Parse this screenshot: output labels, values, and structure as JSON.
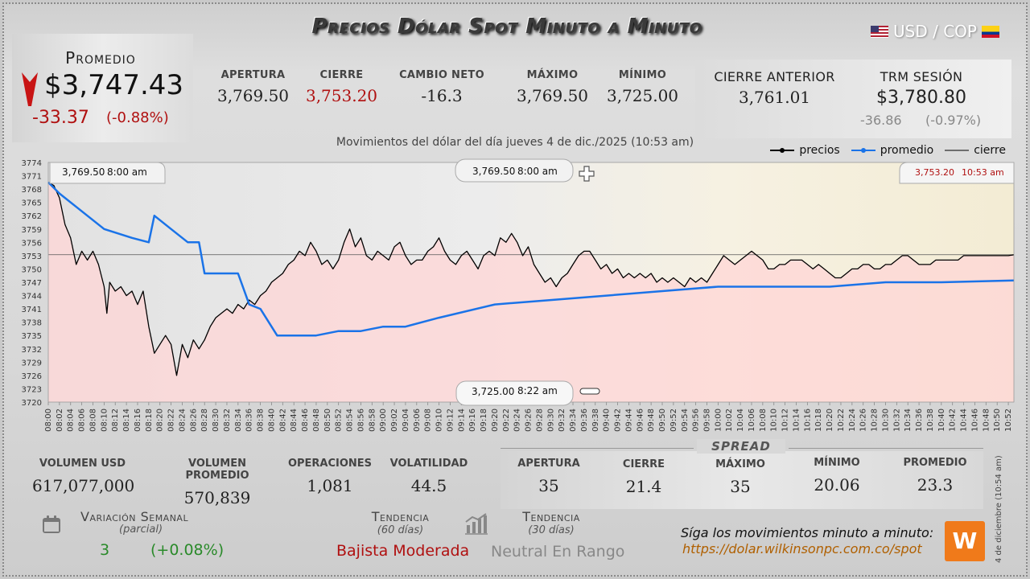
{
  "header": {
    "title": "Precios Dólar Spot Minuto a Minuto",
    "pair": "USD / COP",
    "us_flag_icon": "us-flag-icon",
    "co_flag_icon": "colombia-flag-icon"
  },
  "promedio": {
    "label": "Promedio",
    "value": "$3,747.43",
    "change": "-33.37",
    "change_pct": "(-0.88%)",
    "arrow_icon": "down-arrow-icon",
    "arrow_color": "#c81414"
  },
  "stats": [
    {
      "label": "APERTURA",
      "value": "3,769.50"
    },
    {
      "label": "CIERRE",
      "value": "3,753.20"
    },
    {
      "label": "CAMBIO NETO",
      "value": "-16.3"
    },
    {
      "label": "MÁXIMO",
      "value": "3,769.50"
    },
    {
      "label": "MÍNIMO",
      "value": "3,725.00"
    }
  ],
  "cierre_anterior": {
    "label": "CIERRE ANTERIOR",
    "value": "3,761.01"
  },
  "trm": {
    "label": "TRM SESIÓN",
    "value": "$3,780.80",
    "change": "-36.86",
    "change_pct": "(-0.97%)"
  },
  "subtitle": "Movimientos del dólar del día jueves 4 de dic./2025 (10:53 am)",
  "legend": {
    "precios": "precios",
    "promedio": "promedio",
    "cierre": "cierre"
  },
  "callouts": {
    "open_left": {
      "price": "3,769.50",
      "time": "8:00 am"
    },
    "open_top": {
      "price": "3,769.50",
      "time": "8:00 am"
    },
    "close": {
      "price": "3,753.20",
      "time": "10:53 am"
    },
    "min": {
      "price": "3,725.00",
      "time": "8:22 am"
    }
  },
  "chart_data": {
    "type": "line",
    "ylim": [
      3720,
      3774
    ],
    "yticks": [
      3720,
      3723,
      3726,
      3729,
      3732,
      3735,
      3738,
      3741,
      3744,
      3747,
      3750,
      3753,
      3756,
      3759,
      3762,
      3765,
      3768,
      3771,
      3774
    ],
    "xlim_minutes": [
      0,
      173
    ],
    "xticks": [
      "08:00",
      "08:02",
      "08:04",
      "08:06",
      "08:08",
      "08:10",
      "08:12",
      "08:14",
      "08:16",
      "08:18",
      "08:20",
      "08:22",
      "08:24",
      "08:26",
      "08:28",
      "08:30",
      "08:32",
      "08:34",
      "08:36",
      "08:38",
      "08:40",
      "08:42",
      "08:44",
      "08:46",
      "08:48",
      "08:50",
      "08:52",
      "08:54",
      "08:56",
      "08:58",
      "09:00",
      "09:02",
      "09:04",
      "09:06",
      "09:08",
      "09:10",
      "09:12",
      "09:14",
      "09:16",
      "09:18",
      "09:20",
      "09:22",
      "09:24",
      "09:26",
      "09:28",
      "09:30",
      "09:32",
      "09:34",
      "09:36",
      "09:38",
      "09:40",
      "09:42",
      "09:44",
      "09:46",
      "09:48",
      "09:50",
      "09:52",
      "09:54",
      "09:56",
      "09:58",
      "10:00",
      "10:02",
      "10:04",
      "10:06",
      "10:08",
      "10:10",
      "10:12",
      "10:14",
      "10:16",
      "10:18",
      "10:20",
      "10:22",
      "10:24",
      "10:26",
      "10:28",
      "10:30",
      "10:32",
      "10:34",
      "10:36",
      "10:38",
      "10:40",
      "10:42",
      "10:44",
      "10:46",
      "10:48",
      "10:50",
      "10:52"
    ],
    "cierre_ref": 3753.2,
    "series": [
      {
        "name": "precios",
        "color": "#000000",
        "points": [
          [
            0,
            3769.5
          ],
          [
            1,
            3768.8
          ],
          [
            2,
            3766
          ],
          [
            3,
            3760
          ],
          [
            4,
            3757
          ],
          [
            5,
            3751
          ],
          [
            6,
            3754
          ],
          [
            7,
            3752
          ],
          [
            8,
            3754
          ],
          [
            9,
            3751
          ],
          [
            10,
            3746
          ],
          [
            10.5,
            3740
          ],
          [
            11,
            3747
          ],
          [
            12,
            3745
          ],
          [
            13,
            3746
          ],
          [
            14,
            3744
          ],
          [
            15,
            3745
          ],
          [
            16,
            3742
          ],
          [
            17,
            3745
          ],
          [
            18,
            3737
          ],
          [
            19,
            3731
          ],
          [
            20,
            3733
          ],
          [
            21,
            3735
          ],
          [
            22,
            3733
          ],
          [
            23,
            3726
          ],
          [
            24,
            3733
          ],
          [
            25,
            3730
          ],
          [
            26,
            3734
          ],
          [
            27,
            3732
          ],
          [
            28,
            3734
          ],
          [
            29,
            3737
          ],
          [
            30,
            3739
          ],
          [
            31,
            3740
          ],
          [
            32,
            3741
          ],
          [
            33,
            3740
          ],
          [
            34,
            3742
          ],
          [
            35,
            3741
          ],
          [
            36,
            3743
          ],
          [
            37,
            3742
          ],
          [
            38,
            3744
          ],
          [
            39,
            3745
          ],
          [
            40,
            3747
          ],
          [
            41,
            3748
          ],
          [
            42,
            3749
          ],
          [
            43,
            3751
          ],
          [
            44,
            3752
          ],
          [
            45,
            3754
          ],
          [
            46,
            3753
          ],
          [
            47,
            3756
          ],
          [
            48,
            3754
          ],
          [
            49,
            3751
          ],
          [
            50,
            3752
          ],
          [
            51,
            3750
          ],
          [
            52,
            3752
          ],
          [
            53,
            3756
          ],
          [
            54,
            3759
          ],
          [
            55,
            3755
          ],
          [
            56,
            3757
          ],
          [
            57,
            3753
          ],
          [
            58,
            3752
          ],
          [
            59,
            3754
          ],
          [
            60,
            3753
          ],
          [
            61,
            3752
          ],
          [
            62,
            3755
          ],
          [
            63,
            3756
          ],
          [
            64,
            3753
          ],
          [
            65,
            3751
          ],
          [
            66,
            3752
          ],
          [
            67,
            3752
          ],
          [
            68,
            3754
          ],
          [
            69,
            3755
          ],
          [
            70,
            3757
          ],
          [
            71,
            3754
          ],
          [
            72,
            3752
          ],
          [
            73,
            3751
          ],
          [
            74,
            3753
          ],
          [
            75,
            3754
          ],
          [
            76,
            3752
          ],
          [
            77,
            3750
          ],
          [
            78,
            3753
          ],
          [
            79,
            3754
          ],
          [
            80,
            3753
          ],
          [
            81,
            3757
          ],
          [
            82,
            3756
          ],
          [
            83,
            3758
          ],
          [
            84,
            3756
          ],
          [
            85,
            3753
          ],
          [
            86,
            3755
          ],
          [
            87,
            3751
          ],
          [
            88,
            3749
          ],
          [
            89,
            3747
          ],
          [
            90,
            3748
          ],
          [
            91,
            3746
          ],
          [
            92,
            3748
          ],
          [
            93,
            3749
          ],
          [
            94,
            3751
          ],
          [
            95,
            3753
          ],
          [
            96,
            3754
          ],
          [
            97,
            3754
          ],
          [
            98,
            3752
          ],
          [
            99,
            3750
          ],
          [
            100,
            3751
          ],
          [
            101,
            3749
          ],
          [
            102,
            3750
          ],
          [
            103,
            3748
          ],
          [
            104,
            3749
          ],
          [
            105,
            3748
          ],
          [
            106,
            3749
          ],
          [
            107,
            3748
          ],
          [
            108,
            3749
          ],
          [
            109,
            3747
          ],
          [
            110,
            3748
          ],
          [
            111,
            3747
          ],
          [
            112,
            3748
          ],
          [
            113,
            3747
          ],
          [
            114,
            3746
          ],
          [
            115,
            3748
          ],
          [
            116,
            3747
          ],
          [
            117,
            3748
          ],
          [
            118,
            3747
          ],
          [
            119,
            3749
          ],
          [
            120,
            3751
          ],
          [
            121,
            3753
          ],
          [
            122,
            3752
          ],
          [
            123,
            3751
          ],
          [
            124,
            3752
          ],
          [
            125,
            3753
          ],
          [
            126,
            3754
          ],
          [
            127,
            3753
          ],
          [
            128,
            3752
          ],
          [
            129,
            3750
          ],
          [
            130,
            3750
          ],
          [
            131,
            3751
          ],
          [
            132,
            3751
          ],
          [
            133,
            3752
          ],
          [
            134,
            3752
          ],
          [
            135,
            3752
          ],
          [
            136,
            3751
          ],
          [
            137,
            3750
          ],
          [
            138,
            3751
          ],
          [
            139,
            3750
          ],
          [
            140,
            3749
          ],
          [
            141,
            3748
          ],
          [
            142,
            3748
          ],
          [
            143,
            3749
          ],
          [
            144,
            3750
          ],
          [
            145,
            3750
          ],
          [
            146,
            3751
          ],
          [
            147,
            3751
          ],
          [
            148,
            3750
          ],
          [
            149,
            3750
          ],
          [
            150,
            3751
          ],
          [
            151,
            3751
          ],
          [
            152,
            3752
          ],
          [
            153,
            3753
          ],
          [
            154,
            3753
          ],
          [
            155,
            3752
          ],
          [
            156,
            3751
          ],
          [
            157,
            3751
          ],
          [
            158,
            3751
          ],
          [
            159,
            3752
          ],
          [
            160,
            3752
          ],
          [
            161,
            3752
          ],
          [
            162,
            3752
          ],
          [
            163,
            3752
          ],
          [
            164,
            3753
          ],
          [
            165,
            3753
          ],
          [
            166,
            3753
          ],
          [
            167,
            3753
          ],
          [
            168,
            3753
          ],
          [
            169,
            3753
          ],
          [
            170,
            3753
          ],
          [
            171,
            3753
          ],
          [
            172,
            3753
          ],
          [
            173,
            3753.2
          ]
        ]
      },
      {
        "name": "promedio",
        "color": "#1a73e8",
        "points": [
          [
            0,
            3769.5
          ],
          [
            2,
            3767
          ],
          [
            5,
            3764
          ],
          [
            10,
            3759
          ],
          [
            15,
            3757
          ],
          [
            18,
            3756
          ],
          [
            19,
            3762
          ],
          [
            22,
            3759
          ],
          [
            25,
            3756
          ],
          [
            27,
            3756
          ],
          [
            28,
            3749
          ],
          [
            34,
            3749
          ],
          [
            36,
            3742
          ],
          [
            38,
            3741
          ],
          [
            41,
            3735
          ],
          [
            48,
            3735
          ],
          [
            52,
            3736
          ],
          [
            56,
            3736
          ],
          [
            60,
            3737
          ],
          [
            64,
            3737
          ],
          [
            70,
            3739
          ],
          [
            80,
            3742
          ],
          [
            90,
            3743
          ],
          [
            100,
            3744
          ],
          [
            110,
            3745
          ],
          [
            120,
            3746
          ],
          [
            130,
            3746
          ],
          [
            140,
            3746
          ],
          [
            150,
            3747
          ],
          [
            160,
            3747
          ],
          [
            173,
            3747.4
          ]
        ]
      }
    ]
  },
  "volumen": {
    "label": "VOLUMEN USD",
    "value": "617,077,000"
  },
  "volumen_promedio": {
    "label": "VOLUMEN PROMEDIO",
    "value": "570,839"
  },
  "operaciones": {
    "label": "OPERACIONES",
    "value": "1,081"
  },
  "volatilidad": {
    "label": "VOLATILIDAD",
    "value": "44.5"
  },
  "spread": {
    "title": "SPREAD",
    "apertura": {
      "label": "APERTURA",
      "value": "35"
    },
    "cierre": {
      "label": "CIERRE",
      "value": "21.4"
    },
    "maximo": {
      "label": "MÁXIMO",
      "value": "35"
    },
    "minimo": {
      "label": "MÍNIMO",
      "value": "20.06"
    },
    "promedio": {
      "label": "PROMEDIO",
      "value": "23.3"
    }
  },
  "semanal": {
    "label": "Variación Semanal",
    "sub": "(parcial)",
    "value": "3",
    "pct": "(+0.08%)",
    "icon": "calendar-icon"
  },
  "tend60": {
    "label": "Tendencia",
    "sub": "(60 días)",
    "value": "Bajista Moderada"
  },
  "tend30": {
    "label": "Tendencia",
    "sub": "(30 días)",
    "value": "Neutral En Rango",
    "icon": "bar-chart-icon"
  },
  "footer": {
    "siga": "Síga los movimientos minuto a minuto:",
    "url": "https://dolar.wilkinsonpc.com.co/spot",
    "logo": "W",
    "side_date": "4 de diciembre (10:54 am)"
  }
}
